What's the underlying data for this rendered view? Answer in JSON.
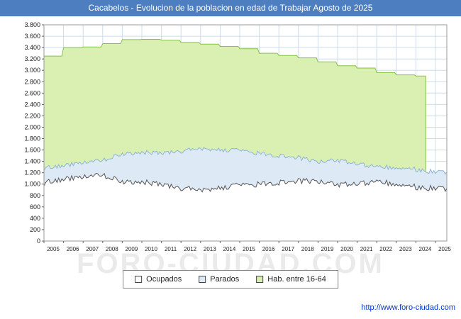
{
  "title_bar": {
    "text": "Cacabelos - Evolucion de la poblacion en edad de Trabajar Agosto de 2025",
    "bg_color": "#4d7ebf"
  },
  "watermark": "FORO-CIUDAD.COM",
  "footer": {
    "url": "http://www.foro-ciudad.com"
  },
  "legend": {
    "items": [
      {
        "label": "Ocupados",
        "fill": "#ffffff",
        "line": "#555555"
      },
      {
        "label": "Parados",
        "fill": "#dde9f5",
        "line": "#90b4d6"
      },
      {
        "label": "Hab. entre 16-64",
        "fill": "#d9f0b2",
        "line": "#84c440"
      }
    ]
  },
  "chart_data": {
    "type": "area",
    "title": "Cacabelos - Evolucion de la poblacion en edad de Trabajar Agosto de 2025",
    "xlabel": "",
    "ylabel": "",
    "x": [
      2005,
      2006,
      2007,
      2008,
      2009,
      2010,
      2011,
      2012,
      2013,
      2014,
      2015,
      2016,
      2017,
      2018,
      2019,
      2020,
      2021,
      2022,
      2023,
      2024,
      2025
    ],
    "x_end": 2025.58,
    "ylim": [
      0,
      3800
    ],
    "ytick_step": 200,
    "grid": true,
    "grid_color": "#ccdcec",
    "legend_position": "bottom",
    "series": [
      {
        "name": "Hab. entre 16-64",
        "fill": "#d9f0b2",
        "line": "#84c440",
        "step": true,
        "jitter": 0,
        "x_end": 2024.5,
        "drop_to_zero": true,
        "values": [
          3250,
          3400,
          3410,
          3470,
          3540,
          3545,
          3530,
          3490,
          3460,
          3420,
          3380,
          3300,
          3260,
          3220,
          3150,
          3080,
          3040,
          2960,
          2920,
          2900,
          null
        ]
      },
      {
        "name": "Parados",
        "fill": "#dde9f5",
        "line": "#90b4d6",
        "step": false,
        "jitter": 40,
        "drop_to_zero": false,
        "values": [
          1280,
          1320,
          1380,
          1420,
          1520,
          1560,
          1540,
          1580,
          1620,
          1600,
          1590,
          1540,
          1500,
          1460,
          1400,
          1420,
          1360,
          1300,
          1290,
          1260,
          1210
        ]
      },
      {
        "name": "Ocupados",
        "fill": "#ffffff",
        "line": "#555555",
        "step": false,
        "jitter": 50,
        "drop_to_zero": false,
        "values": [
          1020,
          1080,
          1130,
          1160,
          1030,
          1040,
          990,
          930,
          890,
          930,
          980,
          1000,
          1030,
          1050,
          1060,
          990,
          1010,
          1040,
          1000,
          950,
          920
        ]
      }
    ]
  }
}
